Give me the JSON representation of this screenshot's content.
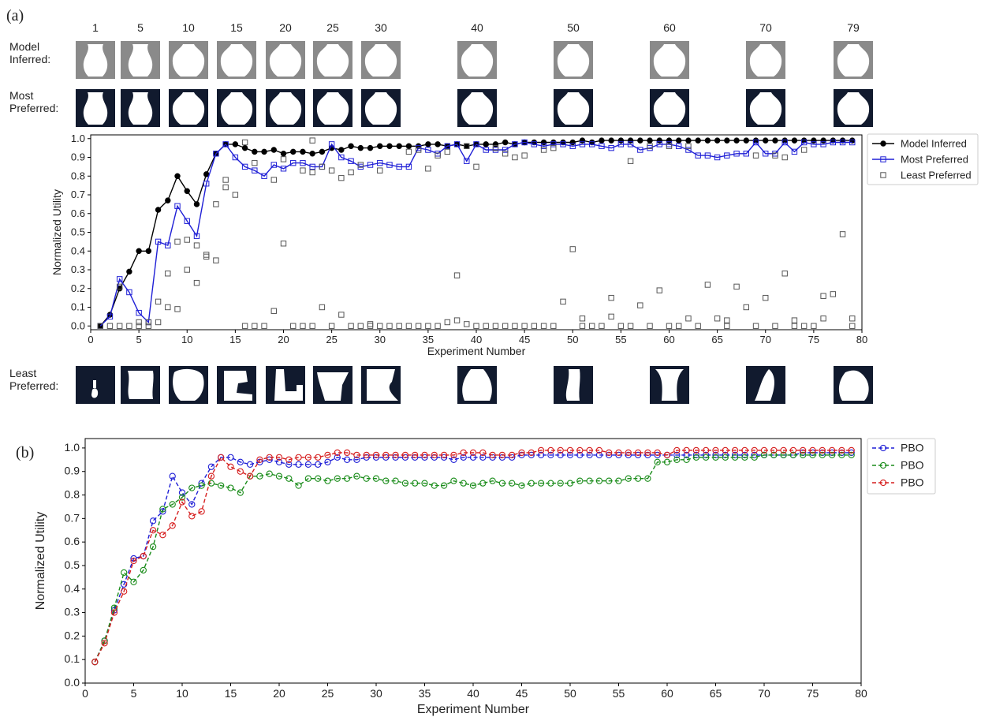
{
  "figure": {
    "panel_a_label": "(a)",
    "panel_b_label": "(b)",
    "row_labels": {
      "model_inferred": [
        "Model",
        "Inferred:"
      ],
      "most_preferred": [
        "Most",
        "Preferred:"
      ],
      "least_preferred": [
        "Least",
        "Preferred:"
      ]
    },
    "thumbnail_experiments": [
      "1",
      "5",
      "10",
      "15",
      "20",
      "25",
      "30",
      "40",
      "50",
      "60",
      "70",
      "79"
    ]
  },
  "chart_data": [
    {
      "type": "line",
      "xlabel": "Experiment Number",
      "ylabel": "Normalized Utility",
      "xlim": [
        0,
        80
      ],
      "ylim": [
        -0.02,
        1.02
      ],
      "xticks": [
        0,
        5,
        10,
        15,
        20,
        25,
        30,
        35,
        40,
        45,
        50,
        55,
        60,
        65,
        70,
        75,
        80
      ],
      "yticks": [
        0.0,
        0.1,
        0.2,
        0.3,
        0.4,
        0.5,
        0.6,
        0.7,
        0.8,
        0.9,
        1.0
      ],
      "grid": false,
      "legend_position": "outside-right",
      "x": [
        1,
        2,
        3,
        4,
        5,
        6,
        7,
        8,
        9,
        10,
        11,
        12,
        13,
        14,
        15,
        16,
        17,
        18,
        19,
        20,
        21,
        22,
        23,
        24,
        25,
        26,
        27,
        28,
        29,
        30,
        31,
        32,
        33,
        34,
        35,
        36,
        37,
        38,
        39,
        40,
        41,
        42,
        43,
        44,
        45,
        46,
        47,
        48,
        49,
        50,
        51,
        52,
        53,
        54,
        55,
        56,
        57,
        58,
        59,
        60,
        61,
        62,
        63,
        64,
        65,
        66,
        67,
        68,
        69,
        70,
        71,
        72,
        73,
        74,
        75,
        76,
        77,
        78,
        79
      ],
      "series": [
        {
          "name": "Model Inferred",
          "color": "#000000",
          "marker": "filled-circle",
          "line": "solid",
          "values": [
            0.0,
            0.06,
            0.2,
            0.29,
            0.4,
            0.4,
            0.62,
            0.67,
            0.8,
            0.72,
            0.65,
            0.81,
            0.92,
            0.97,
            0.97,
            0.95,
            0.93,
            0.93,
            0.94,
            0.92,
            0.93,
            0.93,
            0.92,
            0.93,
            0.95,
            0.94,
            0.96,
            0.95,
            0.95,
            0.96,
            0.96,
            0.96,
            0.96,
            0.96,
            0.97,
            0.97,
            0.96,
            0.97,
            0.96,
            0.97,
            0.97,
            0.97,
            0.98,
            0.97,
            0.98,
            0.98,
            0.98,
            0.98,
            0.98,
            0.98,
            0.99,
            0.98,
            0.99,
            0.99,
            0.99,
            0.99,
            0.99,
            0.99,
            0.99,
            0.99,
            0.99,
            0.99,
            0.99,
            0.99,
            0.99,
            0.99,
            0.99,
            0.99,
            0.99,
            0.99,
            0.99,
            0.99,
            0.99,
            0.99,
            0.99,
            0.99,
            0.99,
            0.99,
            0.99
          ]
        },
        {
          "name": "Most Preferred",
          "color": "#1f1fd6",
          "marker": "open-square",
          "line": "solid",
          "values": [
            0.0,
            0.05,
            0.25,
            0.18,
            0.07,
            0.02,
            0.45,
            0.43,
            0.64,
            0.56,
            0.48,
            0.76,
            0.92,
            0.97,
            0.9,
            0.85,
            0.83,
            0.8,
            0.86,
            0.84,
            0.87,
            0.87,
            0.85,
            0.85,
            0.97,
            0.9,
            0.88,
            0.85,
            0.86,
            0.87,
            0.86,
            0.85,
            0.85,
            0.95,
            0.94,
            0.92,
            0.96,
            0.97,
            0.88,
            0.97,
            0.94,
            0.94,
            0.94,
            0.97,
            0.98,
            0.97,
            0.96,
            0.97,
            0.97,
            0.96,
            0.97,
            0.97,
            0.96,
            0.95,
            0.97,
            0.97,
            0.94,
            0.95,
            0.97,
            0.97,
            0.96,
            0.94,
            0.91,
            0.91,
            0.9,
            0.91,
            0.92,
            0.92,
            0.98,
            0.92,
            0.92,
            0.98,
            0.93,
            0.98,
            0.97,
            0.97,
            0.98,
            0.98,
            0.98
          ]
        },
        {
          "name": "Least Preferred",
          "color": "#555555",
          "marker": "open-square",
          "line": "none",
          "values": [
            0.0,
            0.0,
            0.0,
            0.0,
            0.02,
            0.0,
            0.13,
            0.28,
            0.45,
            0.46,
            0.43,
            0.38,
            0.35,
            0.74,
            0.7,
            0.0,
            0.0,
            0.0,
            0.08,
            0.44,
            0.0,
            0.0,
            0.0,
            0.1,
            0.0,
            0.06,
            0.0,
            0.0,
            0.0,
            0.0,
            0.0,
            0.0,
            0.0,
            0.0,
            0.0,
            0.0,
            0.02,
            0.27,
            0.01,
            0.0,
            0.0,
            0.0,
            0.0,
            0.0,
            0.0,
            0.0,
            0.0,
            0.0,
            0.13,
            0.41,
            0.04,
            0.0,
            0.0,
            0.15,
            0.0,
            0.0,
            0.11,
            0.0,
            0.19,
            0.0,
            0.0,
            0.04,
            0.0,
            0.22,
            0.04,
            0.03,
            0.21,
            0.1,
            0.0,
            0.15,
            0.0,
            0.28,
            0.03,
            0.0,
            0.0,
            0.16,
            0.17,
            0.49,
            0.04
          ]
        }
      ],
      "extra_points": [
        {
          "series": "Least Preferred",
          "x": 3,
          "y": 0.21
        },
        {
          "series": "Least Preferred",
          "x": 5,
          "y": 0.0
        },
        {
          "series": "Least Preferred",
          "x": 6,
          "y": 0.02
        },
        {
          "series": "Least Preferred",
          "x": 7,
          "y": 0.02
        },
        {
          "series": "Least Preferred",
          "x": 8,
          "y": 0.1
        },
        {
          "series": "Least Preferred",
          "x": 9,
          "y": 0.09
        },
        {
          "series": "Least Preferred",
          "x": 10,
          "y": 0.3
        },
        {
          "series": "Least Preferred",
          "x": 11,
          "y": 0.23
        },
        {
          "series": "Least Preferred",
          "x": 12,
          "y": 0.37
        },
        {
          "series": "Least Preferred",
          "x": 13,
          "y": 0.65
        },
        {
          "series": "Least Preferred",
          "x": 14,
          "y": 0.78
        },
        {
          "series": "Least Preferred",
          "x": 16,
          "y": 0.98
        },
        {
          "series": "Least Preferred",
          "x": 17,
          "y": 0.87
        },
        {
          "series": "Least Preferred",
          "x": 19,
          "y": 0.78
        },
        {
          "series": "Least Preferred",
          "x": 20,
          "y": 0.89
        },
        {
          "series": "Least Preferred",
          "x": 22,
          "y": 0.83
        },
        {
          "series": "Least Preferred",
          "x": 23,
          "y": 0.99
        },
        {
          "series": "Least Preferred",
          "x": 23,
          "y": 0.82
        },
        {
          "series": "Least Preferred",
          "x": 24,
          "y": 0.85
        },
        {
          "series": "Least Preferred",
          "x": 25,
          "y": 0.83
        },
        {
          "series": "Least Preferred",
          "x": 26,
          "y": 0.79
        },
        {
          "series": "Least Preferred",
          "x": 27,
          "y": 0.82
        },
        {
          "series": "Least Preferred",
          "x": 28,
          "y": 0.86
        },
        {
          "series": "Least Preferred",
          "x": 29,
          "y": 0.01
        },
        {
          "series": "Least Preferred",
          "x": 30,
          "y": 0.83
        },
        {
          "series": "Least Preferred",
          "x": 33,
          "y": 0.93
        },
        {
          "series": "Least Preferred",
          "x": 34,
          "y": 0.94
        },
        {
          "series": "Least Preferred",
          "x": 35,
          "y": 0.84
        },
        {
          "series": "Least Preferred",
          "x": 36,
          "y": 0.91
        },
        {
          "series": "Least Preferred",
          "x": 37,
          "y": 0.93
        },
        {
          "series": "Least Preferred",
          "x": 38,
          "y": 0.03
        },
        {
          "series": "Least Preferred",
          "x": 39,
          "y": 0.96
        },
        {
          "series": "Least Preferred",
          "x": 40,
          "y": 0.85
        },
        {
          "series": "Least Preferred",
          "x": 42,
          "y": 0.95
        },
        {
          "series": "Least Preferred",
          "x": 43,
          "y": 0.92
        },
        {
          "series": "Least Preferred",
          "x": 44,
          "y": 0.9
        },
        {
          "series": "Least Preferred",
          "x": 45,
          "y": 0.91
        },
        {
          "series": "Least Preferred",
          "x": 47,
          "y": 0.94
        },
        {
          "series": "Least Preferred",
          "x": 48,
          "y": 0.95
        },
        {
          "series": "Least Preferred",
          "x": 51,
          "y": 0.0
        },
        {
          "series": "Least Preferred",
          "x": 54,
          "y": 0.05
        },
        {
          "series": "Least Preferred",
          "x": 56,
          "y": 0.88
        },
        {
          "series": "Least Preferred",
          "x": 58,
          "y": 0.96
        },
        {
          "series": "Least Preferred",
          "x": 60,
          "y": 0.96
        },
        {
          "series": "Least Preferred",
          "x": 62,
          "y": 0.96
        },
        {
          "series": "Least Preferred",
          "x": 66,
          "y": 0.0
        },
        {
          "series": "Least Preferred",
          "x": 69,
          "y": 0.91
        },
        {
          "series": "Least Preferred",
          "x": 71,
          "y": 0.91
        },
        {
          "series": "Least Preferred",
          "x": 72,
          "y": 0.9
        },
        {
          "series": "Least Preferred",
          "x": 73,
          "y": 0.0
        },
        {
          "series": "Least Preferred",
          "x": 74,
          "y": 0.94
        },
        {
          "series": "Least Preferred",
          "x": 76,
          "y": 0.04
        },
        {
          "series": "Least Preferred",
          "x": 79,
          "y": 0.0
        }
      ]
    },
    {
      "type": "line",
      "xlabel": "Experiment Number",
      "ylabel": "Normalized Utility",
      "xlim": [
        0,
        80
      ],
      "ylim": [
        0.0,
        1.04
      ],
      "xticks": [
        0,
        5,
        10,
        15,
        20,
        25,
        30,
        35,
        40,
        45,
        50,
        55,
        60,
        65,
        70,
        75,
        80
      ],
      "yticks": [
        0.0,
        0.1,
        0.2,
        0.3,
        0.4,
        0.5,
        0.6,
        0.7,
        0.8,
        0.9,
        1.0
      ],
      "grid": false,
      "legend_position": "outside-right",
      "x": [
        1,
        2,
        3,
        4,
        5,
        6,
        7,
        8,
        9,
        10,
        11,
        12,
        13,
        14,
        15,
        16,
        17,
        18,
        19,
        20,
        21,
        22,
        23,
        24,
        25,
        26,
        27,
        28,
        29,
        30,
        31,
        32,
        33,
        34,
        35,
        36,
        37,
        38,
        39,
        40,
        41,
        42,
        43,
        44,
        45,
        46,
        47,
        48,
        49,
        50,
        51,
        52,
        53,
        54,
        55,
        56,
        57,
        58,
        59,
        60,
        61,
        62,
        63,
        64,
        65,
        66,
        67,
        68,
        69,
        70,
        71,
        72,
        73,
        74,
        75,
        76,
        77,
        78,
        79
      ],
      "series": [
        {
          "name": "PBO",
          "color": "#1f1fd6",
          "marker": "open-circle",
          "line": "dashed",
          "values": [
            0.09,
            0.18,
            0.31,
            0.42,
            0.53,
            0.54,
            0.69,
            0.73,
            0.88,
            0.81,
            0.76,
            0.85,
            0.92,
            0.96,
            0.96,
            0.94,
            0.93,
            0.94,
            0.95,
            0.94,
            0.93,
            0.93,
            0.93,
            0.93,
            0.94,
            0.96,
            0.95,
            0.95,
            0.96,
            0.96,
            0.96,
            0.96,
            0.96,
            0.96,
            0.96,
            0.96,
            0.96,
            0.95,
            0.96,
            0.96,
            0.96,
            0.96,
            0.96,
            0.96,
            0.97,
            0.97,
            0.97,
            0.97,
            0.97,
            0.97,
            0.97,
            0.97,
            0.97,
            0.97,
            0.97,
            0.97,
            0.97,
            0.97,
            0.97,
            0.97,
            0.97,
            0.97,
            0.97,
            0.97,
            0.97,
            0.97,
            0.97,
            0.97,
            0.97,
            0.97,
            0.97,
            0.97,
            0.97,
            0.98,
            0.98,
            0.98,
            0.98,
            0.98,
            0.98
          ]
        },
        {
          "name": "PBO",
          "color": "#1a8c1a",
          "marker": "open-circle",
          "line": "dashed",
          "values": [
            0.09,
            0.18,
            0.32,
            0.47,
            0.43,
            0.48,
            0.58,
            0.74,
            0.76,
            0.79,
            0.83,
            0.84,
            0.85,
            0.84,
            0.83,
            0.81,
            0.88,
            0.88,
            0.89,
            0.88,
            0.87,
            0.84,
            0.87,
            0.87,
            0.86,
            0.87,
            0.87,
            0.88,
            0.87,
            0.87,
            0.86,
            0.86,
            0.85,
            0.85,
            0.85,
            0.84,
            0.84,
            0.86,
            0.85,
            0.84,
            0.85,
            0.86,
            0.85,
            0.85,
            0.84,
            0.85,
            0.85,
            0.85,
            0.85,
            0.85,
            0.86,
            0.86,
            0.86,
            0.86,
            0.86,
            0.87,
            0.87,
            0.87,
            0.94,
            0.94,
            0.95,
            0.95,
            0.96,
            0.96,
            0.96,
            0.96,
            0.96,
            0.96,
            0.96,
            0.97,
            0.97,
            0.97,
            0.97,
            0.97,
            0.97,
            0.97,
            0.97,
            0.97,
            0.97
          ]
        },
        {
          "name": "PBO",
          "color": "#d61f1f",
          "marker": "open-circle",
          "line": "dashed",
          "values": [
            0.09,
            0.17,
            0.3,
            0.39,
            0.52,
            0.54,
            0.65,
            0.63,
            0.67,
            0.77,
            0.71,
            0.73,
            0.88,
            0.96,
            0.92,
            0.9,
            0.88,
            0.95,
            0.96,
            0.96,
            0.95,
            0.96,
            0.96,
            0.96,
            0.97,
            0.98,
            0.98,
            0.97,
            0.97,
            0.97,
            0.97,
            0.97,
            0.97,
            0.97,
            0.97,
            0.97,
            0.97,
            0.97,
            0.98,
            0.98,
            0.98,
            0.97,
            0.97,
            0.97,
            0.98,
            0.98,
            0.99,
            0.99,
            0.99,
            0.99,
            0.99,
            0.99,
            0.99,
            0.98,
            0.98,
            0.98,
            0.98,
            0.98,
            0.98,
            0.97,
            0.99,
            0.99,
            0.99,
            0.99,
            0.99,
            0.99,
            0.99,
            0.99,
            0.99,
            0.99,
            0.99,
            0.99,
            0.99,
            0.99,
            0.99,
            0.99,
            0.99,
            0.99,
            0.99
          ]
        }
      ]
    }
  ]
}
